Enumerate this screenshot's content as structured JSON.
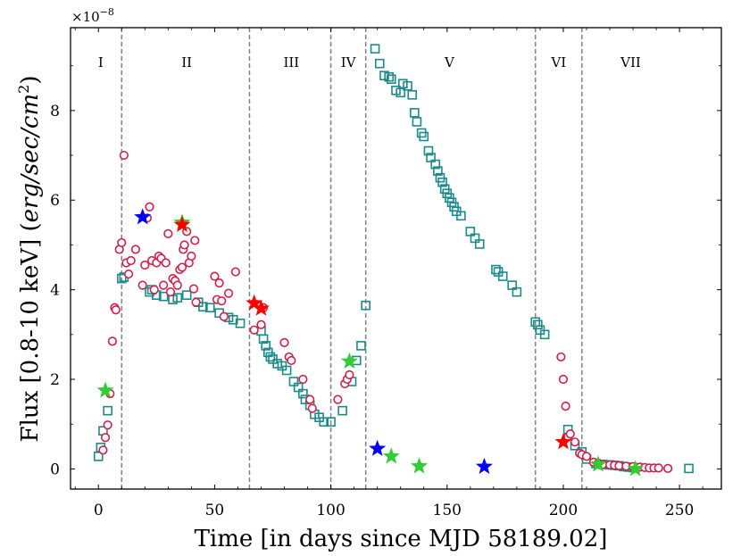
{
  "chart_data": {
    "type": "scatter",
    "xlabel": "Time [in days since MJD 58189.02]",
    "ylabel_text": "Flux [0.8-10 keV] (",
    "ylabel_units": "erg/sec/cm",
    "ylabel_units_exp": "2",
    "ylabel_close": ")",
    "y_multiplier_base": "×10",
    "y_multiplier_exp": "−8",
    "xlim": [
      -12,
      268
    ],
    "ylim": [
      -0.45,
      9.85
    ],
    "xticks": [
      0,
      50,
      100,
      150,
      200,
      250
    ],
    "yticks": [
      0,
      2,
      4,
      6,
      8
    ],
    "phase_boundaries": [
      10,
      65,
      100,
      115,
      188,
      208
    ],
    "phases": [
      {
        "label": "I",
        "x": 1
      },
      {
        "label": "II",
        "x": 38
      },
      {
        "label": "III",
        "x": 83
      },
      {
        "label": "IV",
        "x": 107.5
      },
      {
        "label": "V",
        "x": 151
      },
      {
        "label": "VI",
        "x": 198
      },
      {
        "label": "VII",
        "x": 229
      }
    ],
    "series": [
      {
        "name": "squares",
        "marker": "square",
        "color": "#1b8a8a",
        "points": [
          [
            0,
            0.28
          ],
          [
            1,
            0.48
          ],
          [
            2,
            0.85
          ],
          [
            4,
            1.3
          ],
          [
            10,
            4.25
          ],
          [
            11,
            4.28
          ],
          [
            22,
            3.95
          ],
          [
            23,
            4.0
          ],
          [
            25,
            3.88
          ],
          [
            28,
            3.85
          ],
          [
            32,
            3.78
          ],
          [
            34,
            3.82
          ],
          [
            38,
            3.88
          ],
          [
            43,
            3.72
          ],
          [
            45,
            3.62
          ],
          [
            48,
            3.6
          ],
          [
            52,
            3.48
          ],
          [
            56,
            3.38
          ],
          [
            58,
            3.33
          ],
          [
            61,
            3.25
          ],
          [
            70,
            3.08
          ],
          [
            71,
            2.9
          ],
          [
            72,
            2.75
          ],
          [
            73,
            2.6
          ],
          [
            74,
            2.5
          ],
          [
            75,
            2.45
          ],
          [
            77,
            2.35
          ],
          [
            79,
            2.3
          ],
          [
            81,
            2.2
          ],
          [
            84,
            1.95
          ],
          [
            86,
            1.82
          ],
          [
            88,
            1.68
          ],
          [
            89,
            1.55
          ],
          [
            91,
            1.42
          ],
          [
            93,
            1.22
          ],
          [
            95,
            1.15
          ],
          [
            97,
            1.05
          ],
          [
            100,
            1.05
          ],
          [
            105,
            1.3
          ],
          [
            109,
            1.95
          ],
          [
            111,
            2.42
          ],
          [
            113,
            2.75
          ],
          [
            115,
            3.65
          ],
          [
            119,
            9.38
          ],
          [
            121,
            9.05
          ],
          [
            123,
            8.78
          ],
          [
            125,
            8.75
          ],
          [
            126,
            8.7
          ],
          [
            128,
            8.45
          ],
          [
            130,
            8.4
          ],
          [
            131,
            8.6
          ],
          [
            133,
            8.55
          ],
          [
            135,
            8.35
          ],
          [
            136,
            7.95
          ],
          [
            137,
            7.75
          ],
          [
            139,
            7.5
          ],
          [
            140,
            7.42
          ],
          [
            142,
            7.1
          ],
          [
            143,
            6.95
          ],
          [
            145,
            6.8
          ],
          [
            146,
            6.65
          ],
          [
            147,
            6.5
          ],
          [
            148,
            6.4
          ],
          [
            149,
            6.25
          ],
          [
            150,
            6.15
          ],
          [
            151,
            6.05
          ],
          [
            152,
            5.95
          ],
          [
            153,
            5.85
          ],
          [
            154,
            5.75
          ],
          [
            156,
            5.65
          ],
          [
            160,
            5.3
          ],
          [
            162,
            5.15
          ],
          [
            164,
            5.02
          ],
          [
            171,
            4.45
          ],
          [
            172,
            4.4
          ],
          [
            174,
            4.3
          ],
          [
            178,
            4.1
          ],
          [
            180,
            3.95
          ],
          [
            188,
            3.28
          ],
          [
            189,
            3.22
          ],
          [
            190,
            3.1
          ],
          [
            192,
            3.0
          ],
          [
            202,
            0.88
          ],
          [
            205,
            0.52
          ],
          [
            208,
            0.38
          ],
          [
            210,
            0.22
          ],
          [
            214,
            0.12
          ],
          [
            217,
            0.1
          ],
          [
            220,
            0.09
          ],
          [
            222,
            0.08
          ],
          [
            224,
            0.07
          ],
          [
            226,
            0.05
          ],
          [
            228,
            0.04
          ],
          [
            230,
            0.03
          ],
          [
            254,
            0.01
          ]
        ]
      },
      {
        "name": "circles",
        "marker": "circle",
        "color": "#d41e4a",
        "points": [
          [
            2,
            0.42
          ],
          [
            3,
            0.7
          ],
          [
            4,
            0.98
          ],
          [
            5,
            1.68
          ],
          [
            6,
            2.85
          ],
          [
            7,
            3.6
          ],
          [
            7.5,
            3.55
          ],
          [
            9,
            4.9
          ],
          [
            10,
            5.05
          ],
          [
            11,
            7.0
          ],
          [
            12,
            4.6
          ],
          [
            13,
            4.35
          ],
          [
            14,
            4.65
          ],
          [
            16,
            4.9
          ],
          [
            19,
            4.1
          ],
          [
            20,
            4.55
          ],
          [
            21,
            5.6
          ],
          [
            22,
            5.85
          ],
          [
            23,
            4.65
          ],
          [
            24,
            4.0
          ],
          [
            25,
            4.6
          ],
          [
            26,
            4.75
          ],
          [
            27,
            4.7
          ],
          [
            28,
            4.1
          ],
          [
            29,
            4.6
          ],
          [
            30,
            5.25
          ],
          [
            31,
            3.95
          ],
          [
            32,
            4.25
          ],
          [
            33,
            4.2
          ],
          [
            34,
            4.1
          ],
          [
            35,
            4.45
          ],
          [
            36,
            4.5
          ],
          [
            36.5,
            4.9
          ],
          [
            37,
            5.0
          ],
          [
            38,
            5.3
          ],
          [
            39,
            4.6
          ],
          [
            40,
            4.75
          ],
          [
            41,
            4.02
          ],
          [
            41.5,
            5.1
          ],
          [
            42,
            3.72
          ],
          [
            50,
            4.3
          ],
          [
            51,
            3.78
          ],
          [
            52,
            4.15
          ],
          [
            53,
            3.75
          ],
          [
            54,
            3.4
          ],
          [
            56,
            3.92
          ],
          [
            59,
            4.4
          ],
          [
            67,
            3.1
          ],
          [
            70,
            3.22
          ],
          [
            71,
            3.6
          ],
          [
            80,
            2.82
          ],
          [
            82,
            2.5
          ],
          [
            83,
            2.42
          ],
          [
            88,
            2.0
          ],
          [
            91,
            1.55
          ],
          [
            92,
            1.35
          ],
          [
            103,
            1.55
          ],
          [
            106,
            1.9
          ],
          [
            107,
            2.0
          ],
          [
            108,
            2.1
          ],
          [
            199,
            2.5
          ],
          [
            200,
            2.0
          ],
          [
            201,
            1.4
          ],
          [
            202,
            0.72
          ],
          [
            203,
            0.78
          ],
          [
            205,
            0.6
          ],
          [
            207,
            0.35
          ],
          [
            208,
            0.32
          ],
          [
            210,
            0.28
          ],
          [
            213,
            0.15
          ],
          [
            215,
            0.12
          ],
          [
            217,
            0.1
          ],
          [
            220,
            0.09
          ],
          [
            222,
            0.08
          ],
          [
            224,
            0.07
          ],
          [
            227,
            0.06
          ],
          [
            230,
            0.05
          ],
          [
            233,
            0.04
          ],
          [
            235,
            0.03
          ],
          [
            237,
            0.02
          ],
          [
            239,
            0.02
          ],
          [
            241,
            0.02
          ],
          [
            245,
            0.01
          ]
        ]
      },
      {
        "name": "green stars",
        "marker": "star",
        "color": "#33cc33",
        "points": [
          [
            3,
            1.75
          ],
          [
            36,
            5.5
          ],
          [
            108,
            2.4
          ],
          [
            126,
            0.28
          ],
          [
            138,
            0.06
          ],
          [
            215,
            0.1
          ],
          [
            231,
            0.0
          ]
        ]
      },
      {
        "name": "red stars",
        "marker": "star",
        "color": "#ff0000",
        "points": [
          [
            36,
            5.45
          ],
          [
            67,
            3.7
          ],
          [
            70,
            3.58
          ],
          [
            200,
            0.6
          ]
        ]
      },
      {
        "name": "blue stars",
        "marker": "star",
        "color": "#0000ff",
        "points": [
          [
            19,
            5.62
          ],
          [
            120,
            0.45
          ],
          [
            166,
            0.05
          ]
        ]
      }
    ]
  }
}
